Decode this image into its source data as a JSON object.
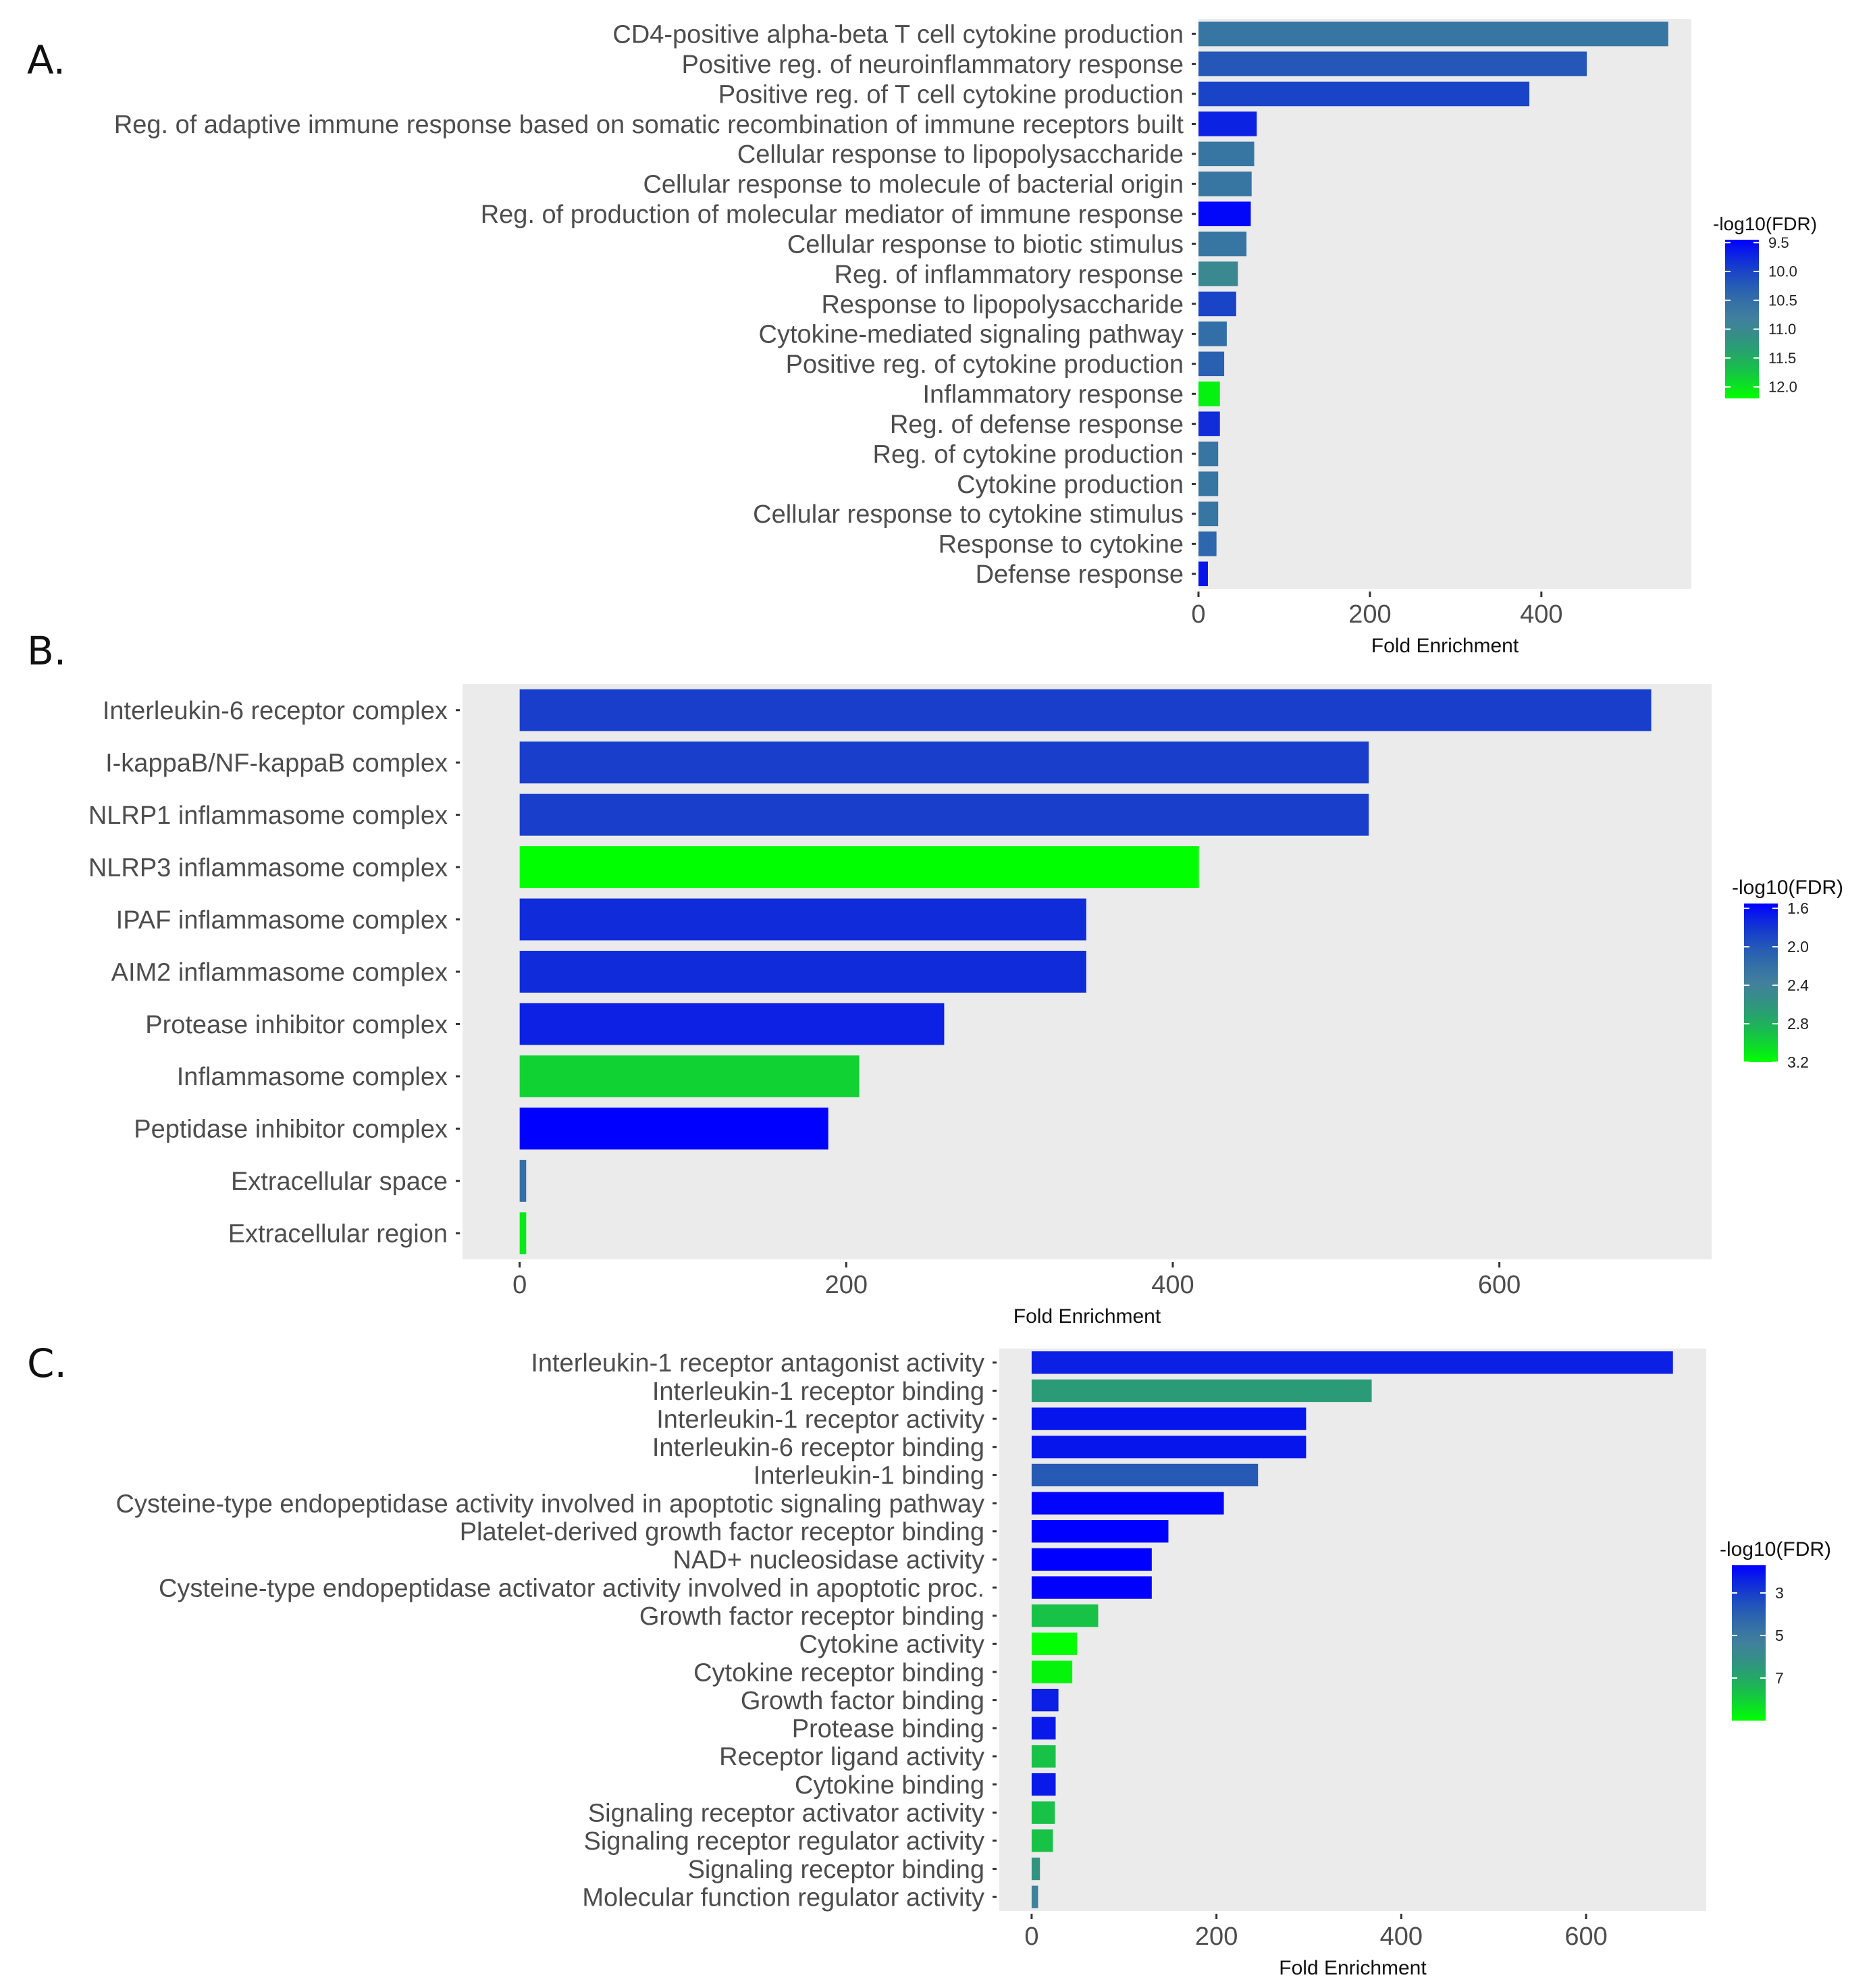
{
  "panels": [
    {
      "letter": "A."
    },
    {
      "letter": "B."
    },
    {
      "letter": "C."
    }
  ],
  "chart_data": [
    {
      "type": "bar",
      "orientation": "horizontal",
      "panel": "A.",
      "title": "",
      "xlabel": "Fold Enrichment",
      "ylabel": "",
      "xlim": [
        0,
        575
      ],
      "xticks": [
        0,
        200,
        400
      ],
      "grid": false,
      "color_legend": {
        "title": "-log10(FDR)",
        "ticks": [
          9.5,
          10.0,
          10.5,
          11.0,
          11.5,
          12.0
        ],
        "tick_labels": [
          "9.5",
          "10.0",
          "10.5",
          "11.0",
          "11.5",
          "12.0"
        ],
        "range": [
          9.45,
          12.2
        ],
        "low_color": "#0000ff",
        "high_color": "#00ff00",
        "placement": "right"
      },
      "categories": [
        "CD4-positive alpha-beta T cell cytokine production",
        "Positive reg. of neuroinflammatory response",
        "Positive reg. of T cell cytokine production",
        "Reg. of adaptive immune response based on somatic recombination of immune receptors built",
        "Cellular response to lipopolysaccharide",
        "Cellular response to molecule of bacterial origin",
        "Reg. of production of molecular mediator of immune response",
        "Cellular response to biotic stimulus",
        "Reg. of inflammatory response",
        "Response to lipopolysaccharide",
        "Cytokine-mediated signaling pathway",
        "Positive reg. of cytokine production",
        "Inflammatory response",
        "Reg. of defense response",
        "Reg. of cytokine production",
        "Cytokine production",
        "Cellular response to cytokine stimulus",
        "Response to cytokine",
        "Defense response"
      ],
      "values": [
        548,
        453,
        386,
        68,
        65,
        62,
        61,
        56,
        46,
        44,
        33,
        30,
        25,
        25,
        23,
        23,
        23,
        21,
        11
      ],
      "color_values": [
        10.6,
        10.2,
        10.0,
        9.7,
        10.6,
        10.6,
        9.5,
        10.6,
        11.0,
        10.0,
        10.5,
        10.3,
        12.1,
        9.8,
        10.6,
        10.6,
        10.6,
        10.4,
        9.6
      ]
    },
    {
      "type": "bar",
      "orientation": "horizontal",
      "panel": "B.",
      "title": "",
      "xlabel": "Fold Enrichment",
      "ylabel": "",
      "xlim": [
        -35,
        730
      ],
      "xticks": [
        0,
        200,
        400,
        600
      ],
      "grid": false,
      "color_legend": {
        "title": "-log10(FDR)",
        "ticks": [
          1.6,
          2.0,
          2.4,
          2.8,
          3.2
        ],
        "tick_labels": [
          "1.6",
          "2.0",
          "2.4",
          "2.8",
          "3.2"
        ],
        "range": [
          1.55,
          3.2
        ],
        "low_color": "#0000ff",
        "high_color": "#00ff00",
        "placement": "right"
      },
      "categories": [
        "Interleukin-6 receptor complex",
        "I-kappaB/NF-kappaB complex",
        "NLRP1 inflammasome complex",
        "NLRP3 inflammasome complex",
        "IPAF inflammasome complex",
        "AIM2 inflammasome complex",
        "Protease inhibitor complex",
        "Inflammasome complex",
        "Peptidase inhibitor complex",
        "Extracellular space",
        "Extracellular region"
      ],
      "values": [
        693,
        520,
        520,
        416,
        347,
        347,
        260,
        208,
        189,
        4,
        4
      ],
      "color_values": [
        1.85,
        1.85,
        1.85,
        3.2,
        1.75,
        1.75,
        1.7,
        3.0,
        1.55,
        2.2,
        3.1
      ]
    },
    {
      "type": "bar",
      "orientation": "horizontal",
      "panel": "C.",
      "title": "",
      "xlabel": "Fold Enrichment",
      "ylabel": "",
      "xlim": [
        -35,
        730
      ],
      "xticks": [
        0,
        200,
        400,
        600
      ],
      "grid": false,
      "color_legend": {
        "title": "-log10(FDR)",
        "ticks": [
          3,
          5,
          7
        ],
        "tick_labels": [
          "3",
          "5",
          "7"
        ],
        "range": [
          1.7,
          9.0
        ],
        "low_color": "#0000ff",
        "high_color": "#00ff00",
        "placement": "right"
      },
      "categories": [
        "Interleukin-1 receptor antagonist activity",
        "Interleukin-1 receptor binding",
        "Interleukin-1 receptor activity",
        "Interleukin-6 receptor binding",
        "Interleukin-1 binding",
        "Cysteine-type endopeptidase activity involved in apoptotic signaling pathway",
        "Platelet-derived growth factor receptor binding",
        "NAD+ nucleosidase activity",
        "Cysteine-type endopeptidase activator activity involved in apoptotic proc.",
        "Growth factor receptor binding",
        "Cytokine activity",
        "Cytokine receptor binding",
        "Growth factor binding",
        "Protease binding",
        "Receptor ligand activity",
        "Cytokine binding",
        "Signaling receptor activator activity",
        "Signaling receptor regulator activity",
        "Signaling receptor binding",
        "Molecular function regulator activity"
      ],
      "values": [
        694,
        368,
        297,
        297,
        245,
        208,
        148,
        130,
        130,
        72,
        49,
        44,
        29,
        26,
        26,
        26,
        25,
        23,
        9,
        7
      ],
      "color_values": [
        2.3,
        6.6,
        2.1,
        2.1,
        3.8,
        1.8,
        1.7,
        1.7,
        1.7,
        7.7,
        9.0,
        8.8,
        2.3,
        2.2,
        7.7,
        2.2,
        7.7,
        7.7,
        6.3,
        5.5
      ]
    }
  ]
}
